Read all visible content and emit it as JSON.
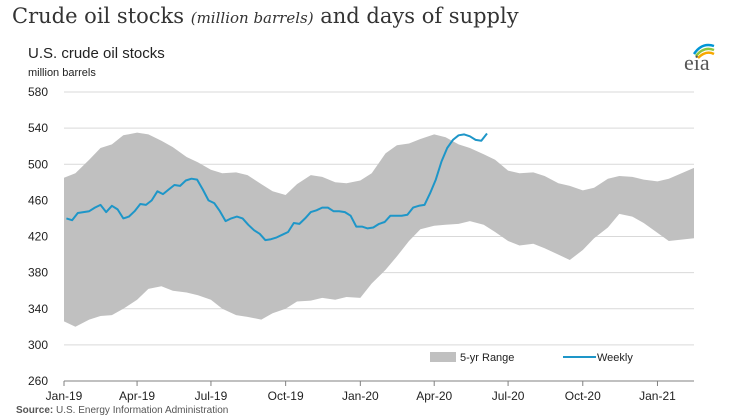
{
  "header": {
    "title_part1": "Crude oil stocks ",
    "title_part2": "(million barrels)",
    "title_part3": " and days of supply"
  },
  "logo": {
    "text": "eia",
    "colors": [
      "#0096D6",
      "#8DC63F",
      "#F7A800"
    ]
  },
  "source": {
    "label": "Source:",
    "text": " U.S. Energy Information Administration"
  },
  "colors": {
    "range": "#C0C0C0",
    "weekly": "#1E96C8",
    "axis": "#808080",
    "grid": "#D9D9D9"
  },
  "chart_data": {
    "type": "area",
    "title": "U.S. crude oil stocks",
    "ylabel": "million barrels",
    "ylim": [
      260,
      580
    ],
    "yticks": [
      260,
      300,
      340,
      380,
      420,
      460,
      500,
      540,
      580
    ],
    "xlim": [
      "2019-01-01",
      "2021-02-15"
    ],
    "xticks": [
      {
        "date": "2019-01-01",
        "label": "Jan-19"
      },
      {
        "date": "2019-04-01",
        "label": "Apr-19"
      },
      {
        "date": "2019-07-01",
        "label": "Jul-19"
      },
      {
        "date": "2019-10-01",
        "label": "Oct-19"
      },
      {
        "date": "2020-01-01",
        "label": "Jan-20"
      },
      {
        "date": "2020-04-01",
        "label": "Apr-20"
      },
      {
        "date": "2020-07-01",
        "label": "Jul-20"
      },
      {
        "date": "2020-10-01",
        "label": "Oct-20"
      },
      {
        "date": "2021-01-01",
        "label": "Jan-21"
      }
    ],
    "grid": true,
    "legend": "bottom-right",
    "series": [
      {
        "name": "5-yr Range",
        "type": "band",
        "x": [
          "2019-01-01",
          "2019-01-15",
          "2019-02-01",
          "2019-02-15",
          "2019-03-01",
          "2019-03-15",
          "2019-04-01",
          "2019-04-15",
          "2019-05-01",
          "2019-05-15",
          "2019-06-01",
          "2019-06-15",
          "2019-07-01",
          "2019-07-15",
          "2019-08-01",
          "2019-08-15",
          "2019-09-01",
          "2019-09-15",
          "2019-10-01",
          "2019-10-15",
          "2019-11-01",
          "2019-11-15",
          "2019-12-01",
          "2019-12-15",
          "2020-01-01",
          "2020-01-15",
          "2020-02-01",
          "2020-02-15",
          "2020-03-01",
          "2020-03-15",
          "2020-04-01",
          "2020-04-15",
          "2020-05-01",
          "2020-05-15",
          "2020-06-01",
          "2020-06-15",
          "2020-07-01",
          "2020-07-15",
          "2020-08-01",
          "2020-08-15",
          "2020-09-01",
          "2020-09-15",
          "2020-10-01",
          "2020-10-15",
          "2020-11-01",
          "2020-11-15",
          "2020-12-01",
          "2020-12-15",
          "2021-01-01",
          "2021-01-15",
          "2021-02-15"
        ],
        "low": [
          326,
          320,
          328,
          332,
          333,
          340,
          350,
          362,
          365,
          360,
          358,
          355,
          350,
          340,
          333,
          331,
          328,
          335,
          340,
          348,
          349,
          352,
          350,
          353,
          352,
          368,
          383,
          398,
          415,
          428,
          432,
          433,
          434,
          437,
          433,
          425,
          415,
          410,
          412,
          407,
          400,
          394,
          405,
          418,
          430,
          445,
          442,
          435,
          424,
          415,
          418
        ],
        "high": [
          485,
          490,
          505,
          518,
          522,
          532,
          535,
          533,
          526,
          519,
          508,
          502,
          494,
          490,
          491,
          488,
          478,
          470,
          466,
          478,
          488,
          486,
          480,
          479,
          482,
          490,
          512,
          521,
          523,
          528,
          533,
          530,
          522,
          518,
          511,
          505,
          493,
          490,
          491,
          487,
          479,
          476,
          471,
          474,
          484,
          487,
          486,
          483,
          481,
          484,
          496
        ]
      },
      {
        "name": "Weekly",
        "type": "line",
        "x": [
          "2019-01-04",
          "2019-01-11",
          "2019-01-18",
          "2019-01-25",
          "2019-02-01",
          "2019-02-08",
          "2019-02-15",
          "2019-02-22",
          "2019-03-01",
          "2019-03-08",
          "2019-03-15",
          "2019-03-22",
          "2019-03-29",
          "2019-04-05",
          "2019-04-12",
          "2019-04-19",
          "2019-04-26",
          "2019-05-03",
          "2019-05-10",
          "2019-05-17",
          "2019-05-24",
          "2019-05-31",
          "2019-06-07",
          "2019-06-14",
          "2019-06-21",
          "2019-06-28",
          "2019-07-05",
          "2019-07-12",
          "2019-07-19",
          "2019-07-26",
          "2019-08-02",
          "2019-08-09",
          "2019-08-16",
          "2019-08-23",
          "2019-08-30",
          "2019-09-06",
          "2019-09-13",
          "2019-09-20",
          "2019-09-27",
          "2019-10-04",
          "2019-10-11",
          "2019-10-18",
          "2019-10-25",
          "2019-11-01",
          "2019-11-08",
          "2019-11-15",
          "2019-11-22",
          "2019-11-29",
          "2019-12-06",
          "2019-12-13",
          "2019-12-20",
          "2019-12-27",
          "2020-01-03",
          "2020-01-10",
          "2020-01-17",
          "2020-01-24",
          "2020-01-31",
          "2020-02-07",
          "2020-02-14",
          "2020-02-21",
          "2020-02-28",
          "2020-03-06",
          "2020-03-13",
          "2020-03-20",
          "2020-03-27",
          "2020-04-03",
          "2020-04-10",
          "2020-04-17",
          "2020-04-24",
          "2020-05-01",
          "2020-05-08",
          "2020-05-15",
          "2020-05-22",
          "2020-05-29",
          "2020-06-05"
        ],
        "values": [
          440,
          438,
          446,
          447,
          448,
          452,
          455,
          447,
          454,
          450,
          440,
          442,
          448,
          456,
          455,
          460,
          470,
          467,
          472,
          477,
          476,
          482,
          484,
          483,
          472,
          460,
          457,
          448,
          437,
          440,
          442,
          440,
          433,
          427,
          423,
          416,
          417,
          419,
          422,
          425,
          435,
          434,
          440,
          447,
          449,
          452,
          452,
          448,
          448,
          447,
          443,
          431,
          431,
          429,
          430,
          434,
          436,
          443,
          443,
          443,
          444,
          452,
          454,
          455,
          468,
          483,
          503,
          518,
          527,
          532,
          533,
          531,
          527,
          526,
          534
        ]
      }
    ]
  }
}
